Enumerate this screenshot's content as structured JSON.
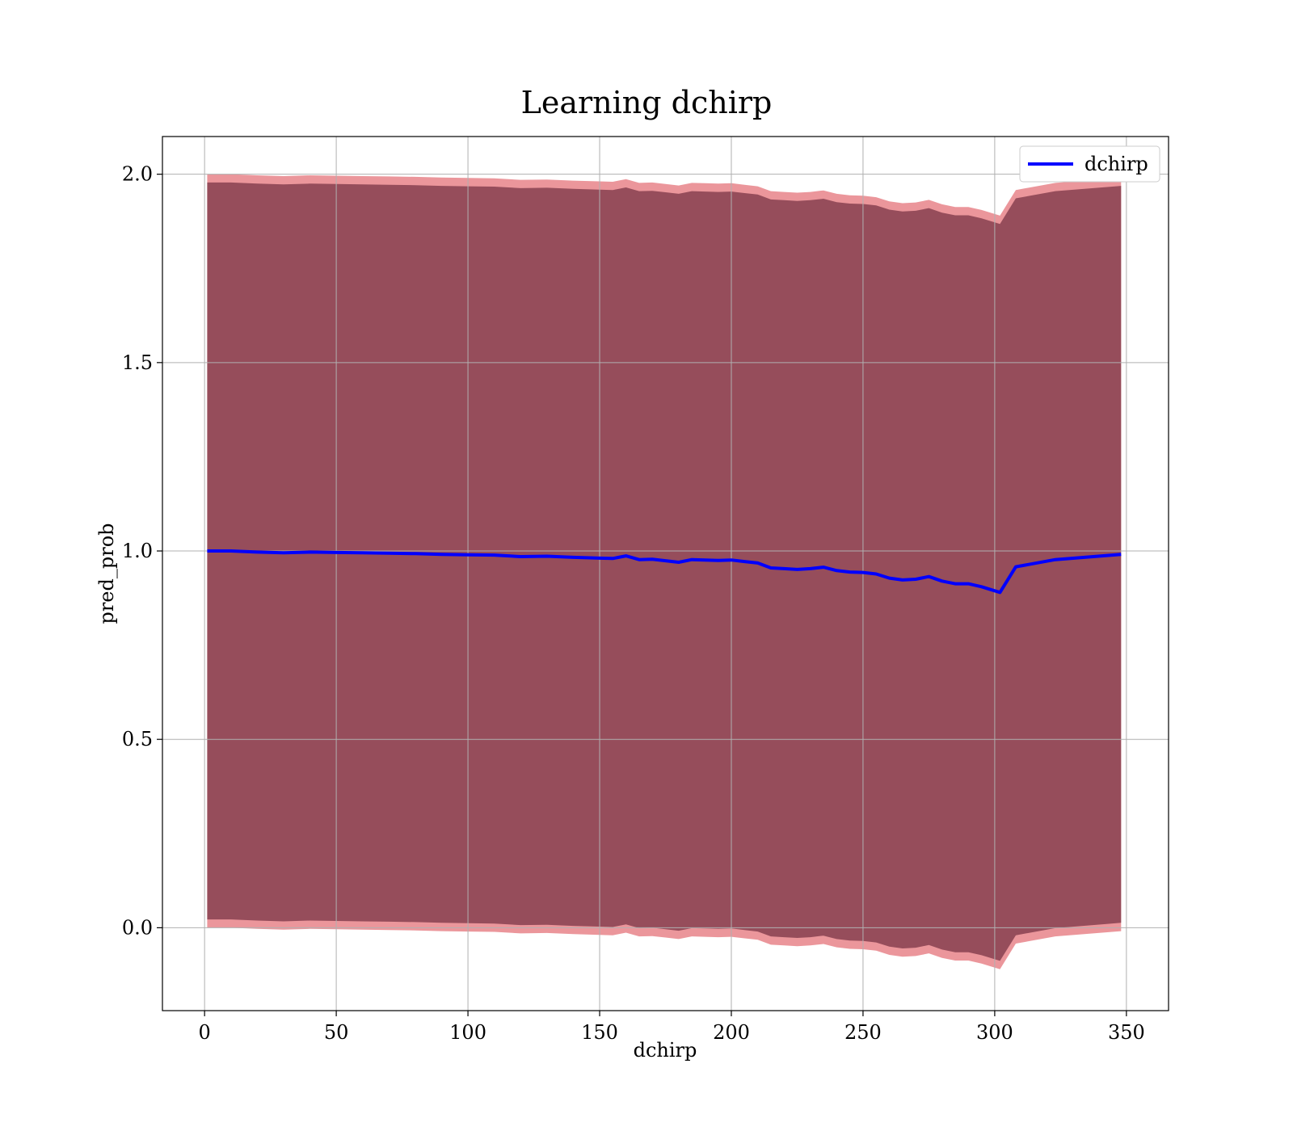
{
  "chart_data": {
    "type": "line",
    "title": "Learning dchirp",
    "xlabel": "dchirp",
    "ylabel": "pred_prob",
    "xlim": [
      -16,
      366
    ],
    "ylim": [
      -0.22,
      2.1
    ],
    "xticks": [
      0,
      50,
      100,
      150,
      200,
      250,
      300,
      350
    ],
    "yticks": [
      0.0,
      0.5,
      1.0,
      1.5,
      2.0
    ],
    "xtick_labels": [
      "0",
      "50",
      "100",
      "150",
      "200",
      "250",
      "300",
      "350"
    ],
    "ytick_labels": [
      "0.0",
      "0.5",
      "1.0",
      "1.5",
      "2.0"
    ],
    "grid": true,
    "legend": {
      "position": "top-right",
      "entries": [
        "dchirp"
      ]
    },
    "series": [
      {
        "name": "dchirp",
        "color": "#0000ff",
        "x": [
          1,
          10,
          20,
          30,
          40,
          50,
          60,
          70,
          80,
          90,
          100,
          110,
          120,
          130,
          140,
          150,
          155,
          160,
          165,
          170,
          175,
          180,
          185,
          190,
          195,
          200,
          205,
          210,
          215,
          220,
          225,
          230,
          235,
          240,
          245,
          250,
          255,
          260,
          265,
          270,
          275,
          280,
          285,
          290,
          295,
          302,
          308,
          323,
          348
        ],
        "y": [
          1.0,
          1.0,
          0.997,
          0.995,
          0.997,
          0.996,
          0.995,
          0.994,
          0.993,
          0.991,
          0.99,
          0.989,
          0.985,
          0.986,
          0.983,
          0.981,
          0.98,
          0.987,
          0.977,
          0.978,
          0.974,
          0.97,
          0.977,
          0.976,
          0.975,
          0.976,
          0.972,
          0.968,
          0.955,
          0.953,
          0.951,
          0.953,
          0.957,
          0.948,
          0.944,
          0.943,
          0.939,
          0.928,
          0.923,
          0.925,
          0.932,
          0.92,
          0.913,
          0.913,
          0.905,
          0.89,
          0.958,
          0.977,
          0.991
        ]
      }
    ],
    "bands": [
      {
        "label": "outer",
        "color": "#e8848a",
        "upper": [
          2.0,
          2.0,
          1.997,
          1.995,
          1.997,
          1.996,
          1.995,
          1.994,
          1.993,
          1.991,
          1.99,
          1.989,
          1.985,
          1.986,
          1.983,
          1.981,
          1.98,
          1.987,
          1.977,
          1.978,
          1.974,
          1.97,
          1.977,
          1.976,
          1.975,
          1.976,
          1.972,
          1.968,
          1.955,
          1.953,
          1.951,
          1.953,
          1.957,
          1.948,
          1.944,
          1.943,
          1.939,
          1.928,
          1.923,
          1.925,
          1.932,
          1.92,
          1.913,
          1.913,
          1.905,
          1.89,
          1.958,
          1.977,
          1.991
        ],
        "lower": [
          0.0,
          0.0,
          -0.003,
          -0.005,
          -0.003,
          -0.004,
          -0.005,
          -0.006,
          -0.007,
          -0.009,
          -0.01,
          -0.011,
          -0.015,
          -0.014,
          -0.017,
          -0.019,
          -0.02,
          -0.013,
          -0.023,
          -0.022,
          -0.026,
          -0.03,
          -0.023,
          -0.024,
          -0.025,
          -0.024,
          -0.028,
          -0.032,
          -0.045,
          -0.047,
          -0.049,
          -0.047,
          -0.043,
          -0.052,
          -0.056,
          -0.057,
          -0.061,
          -0.072,
          -0.077,
          -0.075,
          -0.068,
          -0.08,
          -0.087,
          -0.087,
          -0.095,
          -0.11,
          -0.042,
          -0.023,
          -0.009
        ]
      },
      {
        "label": "inner",
        "color": "#7a3446",
        "upper": [
          1.978,
          1.978,
          1.975,
          1.973,
          1.975,
          1.974,
          1.973,
          1.972,
          1.971,
          1.969,
          1.968,
          1.967,
          1.963,
          1.964,
          1.961,
          1.959,
          1.958,
          1.965,
          1.955,
          1.956,
          1.952,
          1.948,
          1.955,
          1.954,
          1.953,
          1.954,
          1.95,
          1.946,
          1.933,
          1.931,
          1.929,
          1.931,
          1.935,
          1.926,
          1.922,
          1.921,
          1.917,
          1.906,
          1.901,
          1.903,
          1.91,
          1.898,
          1.891,
          1.891,
          1.883,
          1.868,
          1.936,
          1.955,
          1.969
        ],
        "lower": [
          0.022,
          0.022,
          0.019,
          0.017,
          0.019,
          0.018,
          0.017,
          0.016,
          0.015,
          0.013,
          0.012,
          0.011,
          0.007,
          0.008,
          0.005,
          0.003,
          0.002,
          0.009,
          -0.001,
          0.0,
          -0.004,
          -0.008,
          -0.001,
          -0.002,
          -0.003,
          -0.002,
          -0.006,
          -0.01,
          -0.023,
          -0.025,
          -0.027,
          -0.025,
          -0.021,
          -0.03,
          -0.034,
          -0.035,
          -0.039,
          -0.05,
          -0.055,
          -0.053,
          -0.046,
          -0.058,
          -0.065,
          -0.065,
          -0.073,
          -0.088,
          -0.02,
          -0.001,
          0.013
        ]
      }
    ]
  }
}
